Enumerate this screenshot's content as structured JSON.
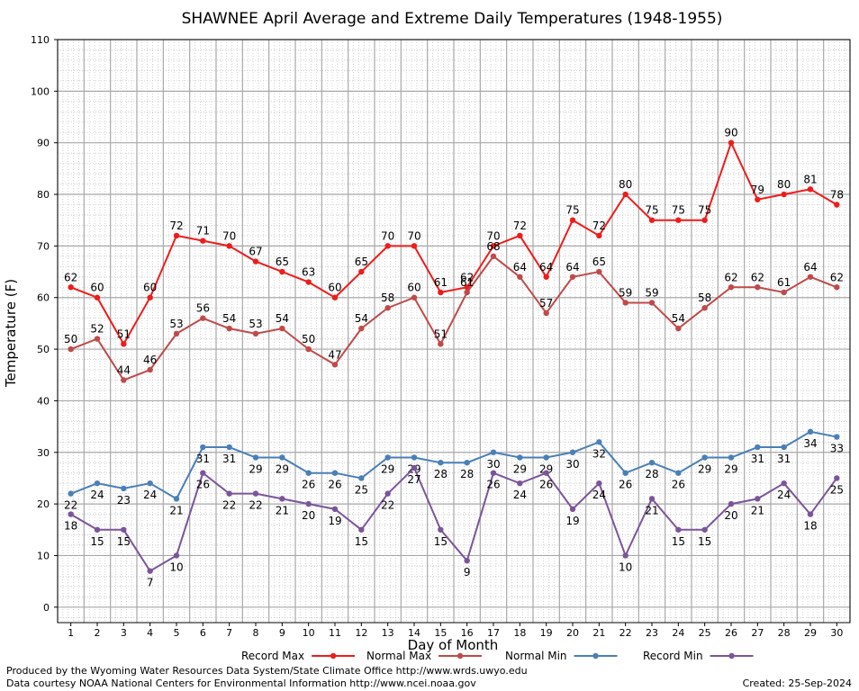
{
  "chart_data": {
    "type": "line",
    "title": "SHAWNEE April Average and Extreme Daily Temperatures (1948-1955)",
    "xlabel": "Day of Month",
    "ylabel": "Temperature (F)",
    "ylim": [
      -3,
      110
    ],
    "yticks": [
      0,
      10,
      20,
      30,
      40,
      50,
      60,
      70,
      80,
      90,
      100,
      110
    ],
    "x": [
      1,
      2,
      3,
      4,
      5,
      6,
      7,
      8,
      9,
      10,
      11,
      12,
      13,
      14,
      15,
      16,
      17,
      18,
      19,
      20,
      21,
      22,
      23,
      24,
      25,
      26,
      27,
      28,
      29,
      30
    ],
    "grid": true,
    "legend": "bottom",
    "series": [
      {
        "name": "Record Max",
        "color": "#ee1c1c",
        "label_pos": "above",
        "values": [
          62,
          60,
          51,
          60,
          72,
          71,
          70,
          67,
          65,
          63,
          60,
          65,
          70,
          70,
          61,
          62,
          70,
          72,
          64,
          75,
          72,
          80,
          75,
          75,
          75,
          90,
          79,
          80,
          81,
          78
        ]
      },
      {
        "name": "Normal Max",
        "color": "#c04a4a",
        "label_pos": "above",
        "values": [
          50,
          52,
          44,
          46,
          53,
          56,
          54,
          53,
          54,
          50,
          47,
          54,
          58,
          60,
          51,
          61,
          68,
          64,
          57,
          64,
          65,
          59,
          59,
          54,
          58,
          62,
          62,
          61,
          64,
          62
        ]
      },
      {
        "name": "Normal Min",
        "color": "#4a7fb8",
        "label_pos": "below",
        "values": [
          22,
          24,
          23,
          24,
          21,
          31,
          31,
          29,
          29,
          26,
          26,
          25,
          29,
          29,
          28,
          28,
          30,
          29,
          29,
          30,
          32,
          26,
          28,
          26,
          29,
          29,
          31,
          31,
          34,
          33
        ]
      },
      {
        "name": "Record Min",
        "color": "#7b559a",
        "label_pos": "below",
        "values": [
          18,
          15,
          15,
          7,
          10,
          26,
          22,
          22,
          21,
          20,
          19,
          15,
          22,
          27,
          15,
          9,
          26,
          24,
          26,
          19,
          24,
          10,
          21,
          15,
          15,
          20,
          21,
          24,
          18,
          25
        ]
      }
    ]
  },
  "footer": {
    "credit_line1": "Produced by the Wyoming Water Resources Data System/State Climate Office http://www.wrds.uwyo.edu",
    "credit_line2": "Data courtesy NOAA National Centers for Environmental Information http://www.ncei.noaa.gov",
    "created": "Created:  25-Sep-2024"
  }
}
